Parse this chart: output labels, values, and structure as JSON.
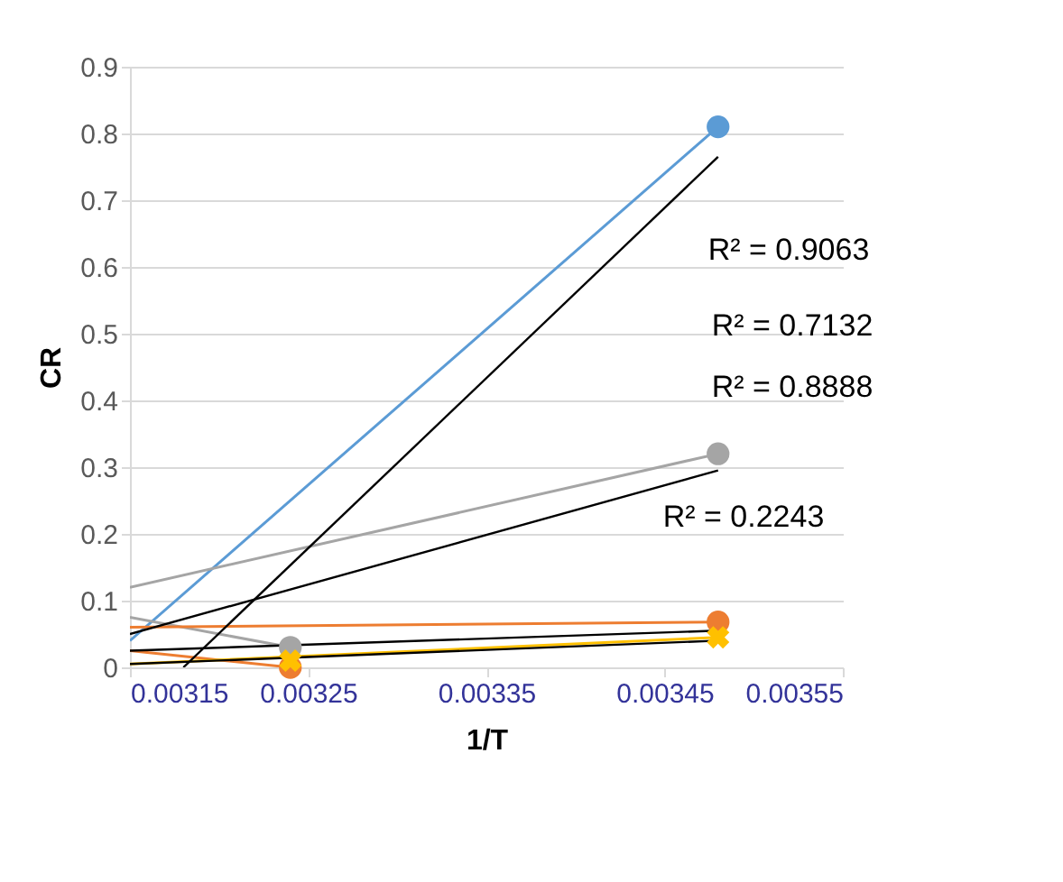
{
  "chart_data": {
    "type": "line",
    "xlabel": "1/T",
    "ylabel": "CR",
    "xlim": [
      0.00315,
      0.00355
    ],
    "xticks": [
      0.00315,
      0.00325,
      0.00335,
      0.00345,
      0.00355
    ],
    "ylim": [
      0,
      0.9
    ],
    "yticks": [
      0,
      0.1,
      0.2,
      0.3,
      0.4,
      0.5,
      0.6,
      0.7,
      0.8,
      0.9
    ],
    "grid": "y",
    "marker": "none",
    "line_style": "solid",
    "series": [
      {
        "color": "#5b9bd5",
        "x": [
          0.00315,
          0.00348
        ],
        "values": [
          0.04,
          0.81
        ]
      },
      {
        "color": "#a5a5a5",
        "x": [
          0.00315,
          0.00348
        ],
        "values": [
          0.12,
          0.32
        ]
      },
      {
        "color": "#a5a5a5",
        "x": [
          0.00315,
          0.00324
        ],
        "values": [
          0.075,
          0.03
        ]
      },
      {
        "color": "#ed7d31",
        "x": [
          0.00315,
          0.00348
        ],
        "values": [
          0.06,
          0.068
        ]
      },
      {
        "color": "#ed7d31",
        "x": [
          0.00315,
          0.00324
        ],
        "values": [
          0.025,
          0.0
        ]
      },
      {
        "color": "#ffc000",
        "x": [
          0.00315,
          0.00348
        ],
        "values": [
          0.005,
          0.045
        ]
      },
      {
        "color": "#000000",
        "x": [
          0.00318,
          0.00348
        ],
        "values": [
          0.0,
          0.765
        ]
      },
      {
        "color": "#000000",
        "x": [
          0.00315,
          0.00348
        ],
        "values": [
          0.05,
          0.295
        ]
      },
      {
        "color": "#000000",
        "x": [
          0.00315,
          0.00348
        ],
        "values": [
          0.025,
          0.055
        ]
      },
      {
        "color": "#000000",
        "x": [
          0.00315,
          0.00348
        ],
        "values": [
          0.005,
          0.04
        ]
      },
      {
        "type": "scatter",
        "marker": "circle",
        "color": "#5b9bd5",
        "x": [
          0.00348
        ],
        "values": [
          0.81
        ]
      },
      {
        "type": "scatter",
        "marker": "circle",
        "color": "#a5a5a5",
        "x": [
          0.00324,
          0.00348
        ],
        "values": [
          0.03,
          0.32
        ]
      },
      {
        "type": "scatter",
        "marker": "circle",
        "color": "#ed7d31",
        "x": [
          0.00324,
          0.00348
        ],
        "values": [
          0.0,
          0.068
        ]
      },
      {
        "type": "scatter",
        "marker": "cross",
        "color": "#ffc000",
        "x": [
          0.00324,
          0.00348
        ],
        "values": [
          0.01,
          0.045
        ]
      }
    ],
    "annotations": [
      "R² = 0.9063",
      "R² = 0.7132",
      "R² = 0.8888",
      "R² = 0.2243"
    ]
  }
}
